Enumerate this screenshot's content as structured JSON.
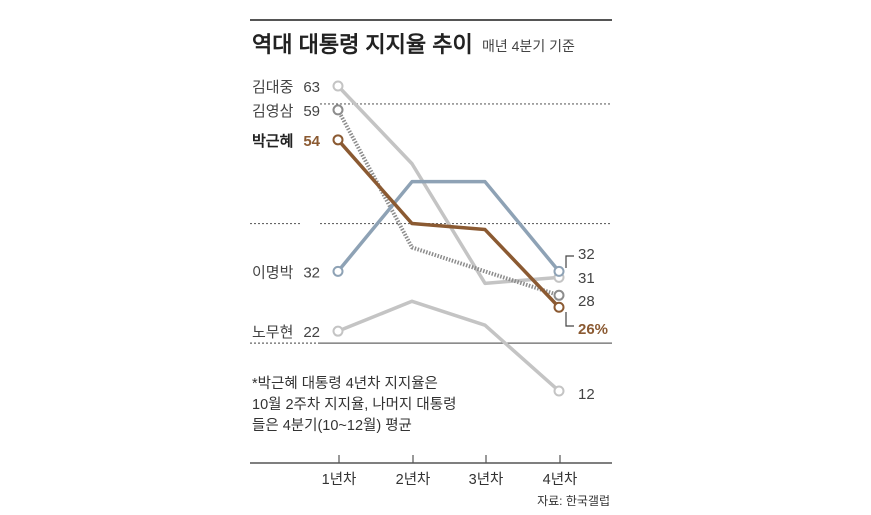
{
  "chart_data": {
    "type": "line",
    "title": "역대 대통령 지지율 추이",
    "subtitle": "매년 4분기 기준",
    "categories": [
      "1년차",
      "2년차",
      "3년차",
      "4년차"
    ],
    "ylim": [
      10,
      65
    ],
    "grid_values": [
      60,
      40,
      20
    ],
    "series": [
      {
        "name": "김대중",
        "values": [
          63,
          50,
          30,
          31
        ],
        "color": "#c4c4c4",
        "style": "solid",
        "start_label": "63",
        "end_label": "31"
      },
      {
        "name": "김영삼",
        "values": [
          59,
          36,
          32,
          28
        ],
        "color": "#8c8c8c",
        "style": "dotted",
        "start_label": "59",
        "end_label": "28"
      },
      {
        "name": "박근혜",
        "values": [
          54,
          40,
          39,
          26
        ],
        "color": "#8b5a32",
        "style": "solid",
        "start_label": "54",
        "end_label": "26%",
        "highlight": true
      },
      {
        "name": "이명박",
        "values": [
          32,
          47,
          47,
          32
        ],
        "color": "#8ea2b5",
        "style": "solid",
        "start_label": "32",
        "end_label": "32"
      },
      {
        "name": "노무현",
        "values": [
          22,
          27,
          23,
          12
        ],
        "color": "#c4c4c4",
        "style": "solid",
        "start_label": "22",
        "end_label": "12"
      }
    ],
    "note": [
      "*박근혜 대통령 4년차 지지율은",
      "10월 2주차 지지율, 나머지 대통령",
      "들은 4분기(10~12월) 평균"
    ],
    "source": "자료: 한국갤럽"
  }
}
